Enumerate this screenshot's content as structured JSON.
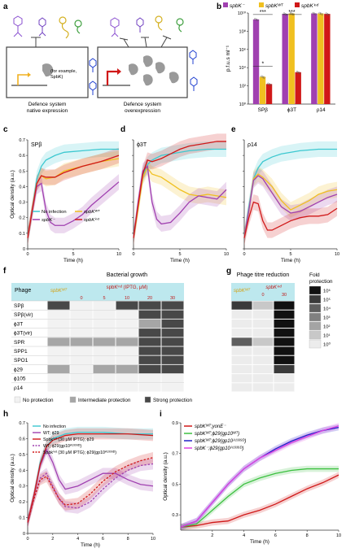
{
  "panel_letters": [
    "a",
    "b",
    "c",
    "d",
    "e",
    "f",
    "g",
    "h",
    "i"
  ],
  "panel_a": {
    "left_caption": [
      "Defence system",
      "native expression"
    ],
    "right_caption": [
      "Defence system",
      "overexpression"
    ],
    "inset_note": [
      "(for example,",
      "SpbK)"
    ]
  },
  "colors": {
    "spbK_minus": "#a040b0",
    "spbK_wt": "#f0c020",
    "spbK_ind": "#d01818",
    "no_infection": "#3cc8d0",
    "table_header": "#bde8ee",
    "none": "#f2f2f2",
    "intermediate": "#a6a6a6",
    "strong": "#484848"
  },
  "chart_data": [
    {
      "id": "b",
      "type": "bar",
      "ylabel": "p.f.u.s ml⁻¹",
      "yscale": "log",
      "ylim_exp": [
        0,
        10
      ],
      "ytick_labels": [
        "10⁰",
        "10²",
        "10⁴",
        "10⁶",
        "10⁸",
        "10¹⁰"
      ],
      "categories": [
        "SPβ",
        "ϕ3T",
        "ρ14"
      ],
      "legend": [
        "spbK⁻",
        "spbKᵂᵀ",
        "spbKⁱⁿᵈ"
      ],
      "series": [
        {
          "name": "spbK⁻",
          "log10": [
            9.3,
            9.9,
            9.95
          ]
        },
        {
          "name": "spbKᵂᵀ",
          "log10": [
            3.0,
            9.95,
            9.95
          ]
        },
        {
          "name": "spbKⁱⁿᵈ",
          "log10": [
            2.2,
            3.5,
            9.9
          ]
        }
      ],
      "sig": [
        {
          "label": "***",
          "cat": 0,
          "level": 10.1
        },
        {
          "label": "*",
          "cat": 0,
          "level": 4.4
        },
        {
          "label": "***",
          "cat": 1,
          "level": 10.1
        }
      ]
    },
    {
      "id": "c",
      "type": "line",
      "title": "SPβ",
      "xlabel": "Time (h)",
      "ylabel": "Optical density (a.u.)",
      "xlim": [
        0,
        10
      ],
      "ylim": [
        0,
        0.7
      ],
      "yticks": [
        "0",
        "0.1",
        "0.2",
        "0.3",
        "0.4",
        "0.5",
        "0.6",
        "0.7"
      ],
      "xticks": [
        "0",
        "5",
        "10"
      ],
      "legend": [
        "No infection",
        "spbKᵂᵀ",
        "spbK⁻",
        "spbKⁱⁿᵈ"
      ],
      "series": [
        {
          "name": "No infection",
          "color": "#3cc8d0",
          "x": [
            0,
            0.5,
            1,
            1.5,
            2,
            3,
            4,
            6,
            8,
            10
          ],
          "y": [
            0.07,
            0.25,
            0.45,
            0.53,
            0.57,
            0.6,
            0.62,
            0.63,
            0.64,
            0.64
          ]
        },
        {
          "name": "spbKᵂᵀ",
          "color": "#f0c020",
          "x": [
            0,
            0.5,
            1,
            1.5,
            2,
            3,
            4,
            6,
            8,
            10
          ],
          "y": [
            0.07,
            0.25,
            0.42,
            0.47,
            0.45,
            0.46,
            0.5,
            0.53,
            0.56,
            0.58
          ]
        },
        {
          "name": "spbK⁻",
          "color": "#a040b0",
          "x": [
            0,
            0.5,
            1,
            1.5,
            2,
            2.5,
            3,
            4,
            5,
            6,
            7,
            8,
            9,
            10
          ],
          "y": [
            0.07,
            0.24,
            0.4,
            0.42,
            0.25,
            0.17,
            0.15,
            0.15,
            0.18,
            0.22,
            0.28,
            0.33,
            0.38,
            0.43
          ]
        },
        {
          "name": "spbKⁱⁿᵈ",
          "color": "#d01818",
          "x": [
            0,
            0.5,
            1,
            1.5,
            2,
            3,
            4,
            6,
            8,
            10
          ],
          "y": [
            0.07,
            0.25,
            0.42,
            0.47,
            0.46,
            0.46,
            0.49,
            0.53,
            0.56,
            0.6
          ]
        }
      ]
    },
    {
      "id": "d",
      "type": "line",
      "title": "ϕ3T",
      "xlabel": "Time (h)",
      "xlim": [
        0,
        10
      ],
      "ylim": [
        0,
        0.7
      ],
      "xticks": [
        "0",
        "5",
        "10"
      ],
      "series": [
        {
          "name": "No infection",
          "color": "#3cc8d0",
          "x": [
            0,
            0.5,
            1,
            1.5,
            2,
            3,
            4,
            6,
            8,
            10
          ],
          "y": [
            0.07,
            0.28,
            0.47,
            0.54,
            0.57,
            0.6,
            0.61,
            0.63,
            0.64,
            0.64
          ]
        },
        {
          "name": "spbKᵂᵀ",
          "color": "#f0c020",
          "x": [
            0,
            0.5,
            1,
            1.5,
            2,
            3,
            4,
            5,
            6,
            7,
            8,
            9,
            10
          ],
          "y": [
            0.07,
            0.26,
            0.46,
            0.52,
            0.48,
            0.46,
            0.42,
            0.38,
            0.35,
            0.34,
            0.35,
            0.34,
            0.33
          ]
        },
        {
          "name": "spbK⁻",
          "color": "#a040b0",
          "x": [
            0,
            0.5,
            1,
            1.5,
            2,
            2.5,
            3,
            4,
            5,
            6,
            7,
            8,
            9,
            10
          ],
          "y": [
            0.07,
            0.3,
            0.5,
            0.53,
            0.3,
            0.19,
            0.16,
            0.17,
            0.23,
            0.3,
            0.34,
            0.33,
            0.32,
            0.38
          ]
        },
        {
          "name": "spbKⁱⁿᵈ",
          "color": "#d01818",
          "x": [
            0,
            0.5,
            1,
            1.5,
            2,
            3,
            4,
            5,
            6,
            7,
            8,
            9,
            10
          ],
          "y": [
            0.07,
            0.28,
            0.48,
            0.57,
            0.56,
            0.58,
            0.61,
            0.64,
            0.66,
            0.67,
            0.68,
            0.69,
            0.69
          ]
        }
      ]
    },
    {
      "id": "e",
      "type": "line",
      "title": "ρ14",
      "xlabel": "Time (h)",
      "xlim": [
        0,
        10
      ],
      "ylim": [
        0,
        0.7
      ],
      "xticks": [
        "0",
        "5",
        "10"
      ],
      "series": [
        {
          "name": "No infection",
          "color": "#3cc8d0",
          "x": [
            0,
            0.5,
            1,
            1.5,
            2,
            3,
            4,
            6,
            8,
            10
          ],
          "y": [
            0.07,
            0.27,
            0.45,
            0.52,
            0.56,
            0.59,
            0.61,
            0.63,
            0.64,
            0.64
          ]
        },
        {
          "name": "spbKᵂᵀ",
          "color": "#f0c020",
          "x": [
            0,
            0.5,
            1,
            1.5,
            2,
            3,
            4,
            5,
            6,
            7,
            8,
            9,
            10
          ],
          "y": [
            0.07,
            0.25,
            0.45,
            0.48,
            0.46,
            0.4,
            0.31,
            0.25,
            0.28,
            0.31,
            0.35,
            0.37,
            0.38
          ]
        },
        {
          "name": "spbK⁻",
          "color": "#a040b0",
          "x": [
            0,
            0.5,
            1,
            1.5,
            2,
            3,
            4,
            5,
            6,
            7,
            8,
            9,
            10
          ],
          "y": [
            0.07,
            0.25,
            0.44,
            0.47,
            0.45,
            0.36,
            0.27,
            0.23,
            0.24,
            0.27,
            0.3,
            0.33,
            0.35
          ]
        },
        {
          "name": "spbKⁱⁿᵈ",
          "color": "#d01818",
          "x": [
            0,
            0.5,
            1,
            1.5,
            2,
            2.5,
            3,
            4,
            5,
            6,
            7,
            8,
            9,
            10
          ],
          "y": [
            0.07,
            0.2,
            0.3,
            0.29,
            0.18,
            0.12,
            0.12,
            0.15,
            0.18,
            0.2,
            0.21,
            0.21,
            0.22,
            0.26
          ]
        }
      ]
    },
    {
      "id": "h",
      "type": "line",
      "xlabel": "Time (h)",
      "ylabel": "Optical density (a.u.)",
      "xlim": [
        0,
        10
      ],
      "ylim": [
        0,
        0.7
      ],
      "yticks": [
        "0",
        "0.1",
        "0.2",
        "0.3",
        "0.4",
        "0.5",
        "0.6",
        "0.7"
      ],
      "xticks": [
        "0",
        "2",
        "4",
        "6",
        "8",
        "10"
      ],
      "legend": [
        "No infection",
        "WT; ϕ29",
        "Spbkⁱⁿᵈ (30 μM IPTG); ϕ29",
        "WT; ϕ29(gp10ᴬ¹³³⁹ᴰ)",
        "Spbkⁱⁿᵈ (30 μM IPTG); ϕ29(gp10ᴬ¹³³⁹ᴰ)"
      ],
      "series": [
        {
          "name": "No infection",
          "color": "#3cc8d0",
          "dash": false,
          "x": [
            0,
            0.5,
            1,
            1.5,
            2,
            3,
            4,
            6,
            8,
            10
          ],
          "y": [
            0.07,
            0.24,
            0.45,
            0.55,
            0.6,
            0.63,
            0.64,
            0.64,
            0.63,
            0.63
          ]
        },
        {
          "name": "WT; ϕ29",
          "color": "#a040b0",
          "dash": false,
          "x": [
            0,
            0.5,
            1,
            1.5,
            2,
            2.5,
            3,
            4,
            5,
            6,
            7,
            8,
            9,
            10
          ],
          "y": [
            0.07,
            0.24,
            0.43,
            0.53,
            0.45,
            0.34,
            0.28,
            0.3,
            0.34,
            0.38,
            0.38,
            0.34,
            0.31,
            0.3
          ]
        },
        {
          "name": "Spbkⁱⁿᵈ (30 μM IPTG); ϕ29",
          "color": "#d01818",
          "dash": false,
          "x": [
            0,
            0.5,
            1,
            1.5,
            2,
            3,
            4,
            6,
            8,
            10
          ],
          "y": [
            0.07,
            0.24,
            0.44,
            0.55,
            0.59,
            0.62,
            0.63,
            0.63,
            0.63,
            0.62
          ]
        },
        {
          "name": "WT; ϕ29(gp10ᴬ¹³³⁹ᴰ)",
          "color": "#a040b0",
          "dash": true,
          "x": [
            0,
            0.5,
            1,
            1.5,
            2,
            2.5,
            3,
            4,
            5,
            6,
            7,
            8,
            9,
            10
          ],
          "y": [
            0.07,
            0.22,
            0.35,
            0.38,
            0.3,
            0.22,
            0.17,
            0.16,
            0.2,
            0.28,
            0.35,
            0.4,
            0.43,
            0.44
          ]
        },
        {
          "name": "Spbkⁱⁿᵈ (30 μM IPTG); ϕ29(gp10ᴬ¹³³⁹ᴰ)",
          "color": "#d01818",
          "dash": true,
          "x": [
            0,
            0.5,
            1,
            1.5,
            2,
            2.5,
            3,
            4,
            5,
            6,
            7,
            8,
            9,
            10
          ],
          "y": [
            0.07,
            0.22,
            0.34,
            0.36,
            0.29,
            0.22,
            0.18,
            0.19,
            0.25,
            0.33,
            0.39,
            0.43,
            0.46,
            0.48
          ]
        }
      ]
    },
    {
      "id": "i",
      "type": "line",
      "xlabel": "Time (h)",
      "ylabel": "Optical density (a.u.)",
      "xlim": [
        0,
        10
      ],
      "ylim": [
        0.2,
        0.9
      ],
      "yticks": [
        "0.3",
        "0.5",
        "0.7",
        "0.9"
      ],
      "xticks": [
        "2",
        "4",
        "6",
        "8",
        "10"
      ],
      "legend": [
        "spbKᵂᵀ;yonE⁻",
        "spbKᵂᵀ;ϕ29(gp10ᵂᵀ)",
        "spbKᵂᵀ;ϕ29(gp10ᴬ¹³³⁹ᴰ)",
        "spbK⁻;ϕ29(gp10ᴬ¹³³⁹ᴰ)"
      ],
      "series": [
        {
          "name": "spbKᵂᵀ;yonE⁻",
          "color": "#d01818",
          "x": [
            0,
            1,
            2,
            3,
            4,
            5,
            6,
            7,
            8,
            9,
            10
          ],
          "y": [
            0.22,
            0.23,
            0.25,
            0.26,
            0.3,
            0.33,
            0.37,
            0.42,
            0.47,
            0.51,
            0.56
          ]
        },
        {
          "name": "spbKᵂᵀ;ϕ29(gp10ᵂᵀ)",
          "color": "#3cc040",
          "x": [
            0,
            1,
            2,
            3,
            4,
            5,
            6,
            7,
            8,
            9,
            10
          ],
          "y": [
            0.22,
            0.24,
            0.33,
            0.42,
            0.5,
            0.54,
            0.57,
            0.59,
            0.6,
            0.6,
            0.6
          ]
        },
        {
          "name": "spbKᵂᵀ;ϕ29(gp10ᴬ¹³³⁹ᴰ)",
          "color": "#2020c8",
          "x": [
            0,
            1,
            2,
            3,
            4,
            5,
            6,
            7,
            8,
            9,
            10
          ],
          "y": [
            0.22,
            0.26,
            0.38,
            0.5,
            0.6,
            0.67,
            0.73,
            0.78,
            0.82,
            0.85,
            0.87
          ]
        },
        {
          "name": "spbK⁻;ϕ29(gp10ᴬ¹³³⁹ᴰ)",
          "color": "#e040e0",
          "x": [
            0,
            1,
            2,
            3,
            4,
            5,
            6,
            7,
            8,
            9,
            10
          ],
          "y": [
            0.22,
            0.26,
            0.38,
            0.5,
            0.6,
            0.67,
            0.72,
            0.77,
            0.81,
            0.85,
            0.88
          ]
        }
      ]
    }
  ],
  "table_f": {
    "header_col": "Phage",
    "group_wt": "spbKᵂᵀ",
    "group_ind": "spbKⁱⁿᵈ (IPTG, μM)",
    "section_title": "Bacterial growth",
    "conc": [
      "0",
      "5",
      "10",
      "20",
      "30"
    ],
    "phages": [
      "SPβ",
      "SPβ(vir)",
      "ϕ3T",
      "ϕ3T(vir)",
      "SPR",
      "SPP1",
      "SPO1",
      "ϕ29",
      "ϕ105",
      "ρ14"
    ],
    "cells": [
      [
        2,
        0,
        0,
        2,
        2,
        2
      ],
      [
        0,
        0,
        0,
        0,
        2,
        2
      ],
      [
        0,
        0,
        0,
        0,
        1,
        2
      ],
      [
        0,
        0,
        0,
        0,
        2,
        2
      ],
      [
        1,
        1,
        1,
        1,
        2,
        2
      ],
      [
        0,
        0,
        0,
        0,
        2,
        2
      ],
      [
        0,
        0,
        0,
        0,
        2,
        2
      ],
      [
        1,
        0,
        1,
        1,
        2,
        2
      ],
      [
        0,
        0,
        0,
        0,
        0,
        0
      ],
      [
        0,
        0,
        0,
        0,
        0,
        0
      ]
    ],
    "legend": [
      "No protection",
      "Intermediate protection",
      "Strong protection"
    ]
  },
  "table_g": {
    "section_title": "Phage titre reduction",
    "group_wt": "spbKᵂᵀ",
    "group_ind": "spbKⁱⁿᵈ",
    "conc": [
      "0",
      "30"
    ],
    "cells": [
      [
        5,
        1,
        7
      ],
      [
        0,
        0,
        7
      ],
      [
        0,
        0,
        7
      ],
      [
        0,
        0,
        7
      ],
      [
        4,
        1,
        6
      ],
      [
        0,
        0,
        7
      ],
      [
        0,
        0,
        6
      ],
      [
        0,
        0,
        5
      ],
      [
        0,
        0,
        0
      ],
      [
        0,
        0,
        0
      ]
    ],
    "scale_title": [
      "Fold",
      "protection"
    ],
    "scale_labels": [
      "10⁶",
      "10⁵",
      "10⁴",
      "10³",
      "10²",
      "10¹",
      "10⁰"
    ],
    "scale_colors": [
      "#111111",
      "#3a3a3a",
      "#5e5e5e",
      "#808080",
      "#a4a4a4",
      "#c8c8c8",
      "#ececec"
    ]
  }
}
